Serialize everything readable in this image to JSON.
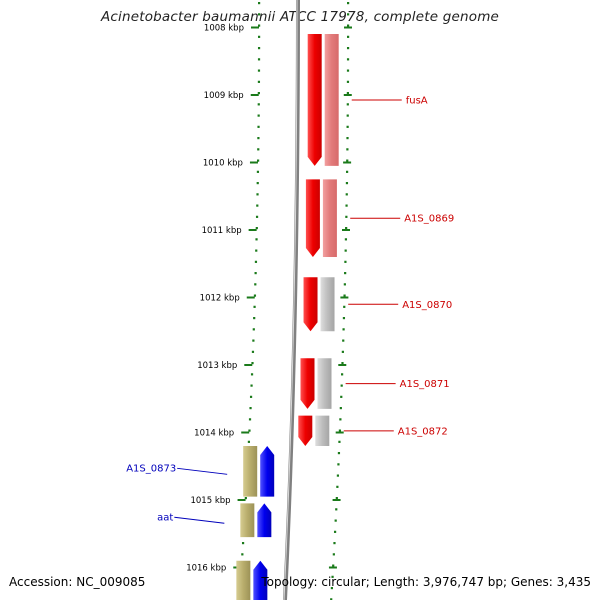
{
  "map": {
    "title": "Acinetobacter baumannii ATCC 17978, complete genome",
    "accession_text": "Accession: NC_009085",
    "topology_text": "Topology: circular; Length: 3,976,747 bp; Genes: 3,435"
  },
  "ruler": {
    "ticks": [
      {
        "label": "1008 kbp",
        "kbp": 1008
      },
      {
        "label": "1009 kbp",
        "kbp": 1009
      },
      {
        "label": "1010 kbp",
        "kbp": 1010
      },
      {
        "label": "1011 kbp",
        "kbp": 1011
      },
      {
        "label": "1012 kbp",
        "kbp": 1012
      },
      {
        "label": "1013 kbp",
        "kbp": 1013
      },
      {
        "label": "1014 kbp",
        "kbp": 1014
      },
      {
        "label": "1015 kbp",
        "kbp": 1015
      },
      {
        "label": "1016 kbp",
        "kbp": 1016
      }
    ]
  },
  "genes": [
    {
      "name": "fusA",
      "strand": "reverse",
      "start_kbp": 1007.9,
      "end_kbp": 1010.05
    },
    {
      "name": "A1S_0869",
      "strand": "reverse",
      "start_kbp": 1010.25,
      "end_kbp": 1011.4
    },
    {
      "name": "A1S_0870",
      "strand": "reverse",
      "start_kbp": 1011.7,
      "end_kbp": 1012.5
    },
    {
      "name": "A1S_0871",
      "strand": "reverse",
      "start_kbp": 1012.9,
      "end_kbp": 1013.65
    },
    {
      "name": "A1S_0872",
      "strand": "reverse",
      "start_kbp": 1013.75,
      "end_kbp": 1014.2
    },
    {
      "name": "A1S_0873",
      "strand": "forward",
      "start_kbp": 1014.2,
      "end_kbp": 1014.95
    },
    {
      "name": "aat",
      "strand": "forward",
      "start_kbp": 1015.05,
      "end_kbp": 1015.55
    },
    {
      "name": "",
      "strand": "forward",
      "start_kbp": 1015.9,
      "end_kbp": 1016.5
    }
  ],
  "colors": {
    "reverse_cds": "#ff0000",
    "reverse_shadow_first": "#e87878",
    "reverse_shadow": "#b9b9b9",
    "forward_cds": "#0000ff",
    "forward_shadow": "#b5a96a",
    "reverse_label": "#cc0000",
    "forward_label": "#0000bb",
    "ruler_tick": "#1a7a1a",
    "backbone": "#808080",
    "tick_text": "#000000"
  }
}
